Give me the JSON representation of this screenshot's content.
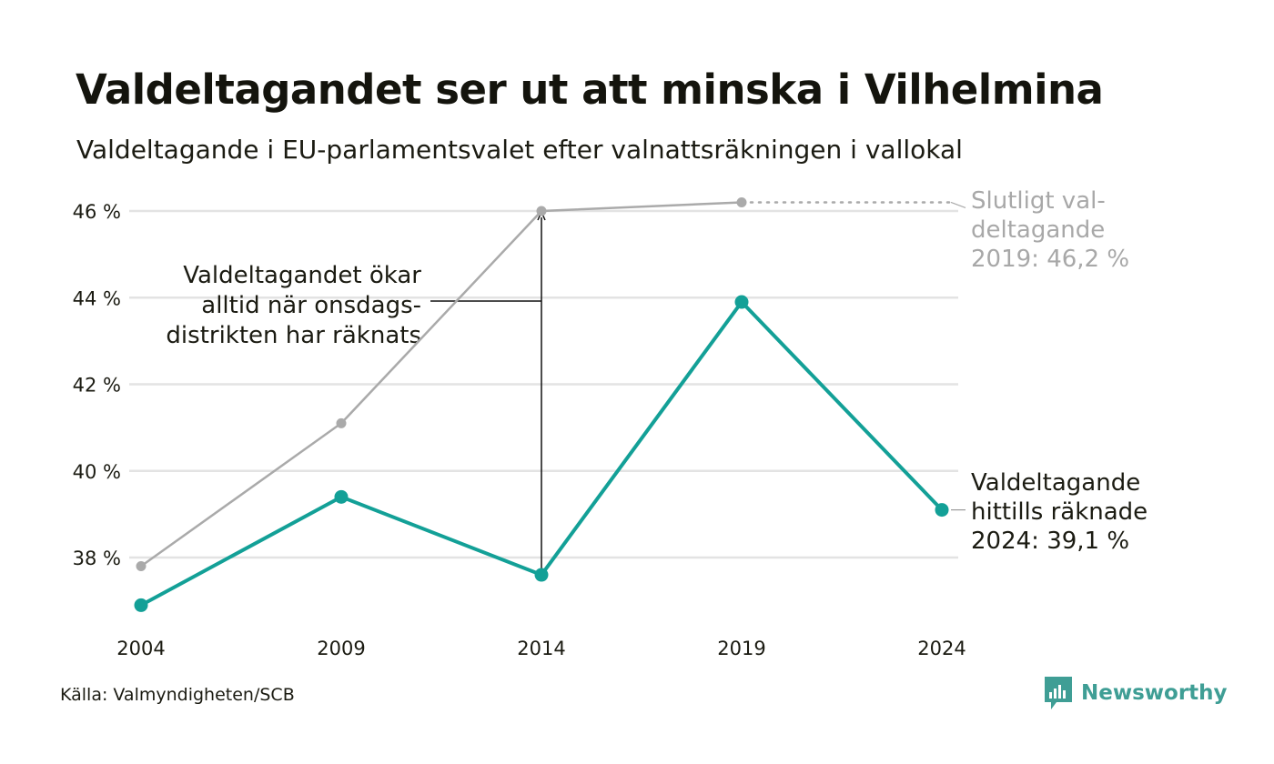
{
  "title": "Valdeltagandet ser ut att minska i Vilhelmina",
  "subtitle": "Valdeltagande i EU-parlamentsvalet efter valnattsräkningen i vallokal",
  "source": "Källa: Valmyndigheten/SCB",
  "brand": {
    "name": "Newsworthy",
    "icon": "newsworthy-logo-icon"
  },
  "colors": {
    "counted": "#13a097",
    "final": "#aaaaaa",
    "grid": "#e3e3e3",
    "text": "#1b1b12",
    "final_label": "#a8a8a8",
    "brand": "#3f9e95"
  },
  "chart_data": {
    "type": "line",
    "title": "Valdeltagandet ser ut att minska i Vilhelmina",
    "subtitle": "Valdeltagande i EU-parlamentsvalet efter valnattsräkningen i vallokal",
    "x": [
      2004,
      2009,
      2014,
      2019,
      2024
    ],
    "x_tick_labels": [
      "2004",
      "2009",
      "2014",
      "2019",
      "2024"
    ],
    "y_ticks": [
      38,
      40,
      42,
      44,
      46
    ],
    "y_tick_labels": [
      "38 %",
      "40 %",
      "42 %",
      "44 %",
      "46 %"
    ],
    "ylim": [
      36.5,
      46.6
    ],
    "grid": true,
    "legend": "none",
    "series": [
      {
        "key": "final",
        "x": [
          2004,
          2009,
          2014,
          2019
        ],
        "values": [
          37.8,
          41.1,
          46.0,
          46.2
        ]
      },
      {
        "key": "counted",
        "x": [
          2004,
          2009,
          2014,
          2019,
          2024
        ],
        "values": [
          36.9,
          39.4,
          37.6,
          43.9,
          39.1
        ]
      }
    ],
    "annotations": {
      "final": [
        "Slutligt val-",
        "deltagande",
        "2019: 46,2 %"
      ],
      "counted": [
        "Valdeltagande",
        "hittills räknade",
        "2024: 39,1 %"
      ],
      "wednesday": [
        "Valdeltagandet ökar",
        "alltid när onsdags-",
        "distrikten har räknats"
      ]
    }
  }
}
